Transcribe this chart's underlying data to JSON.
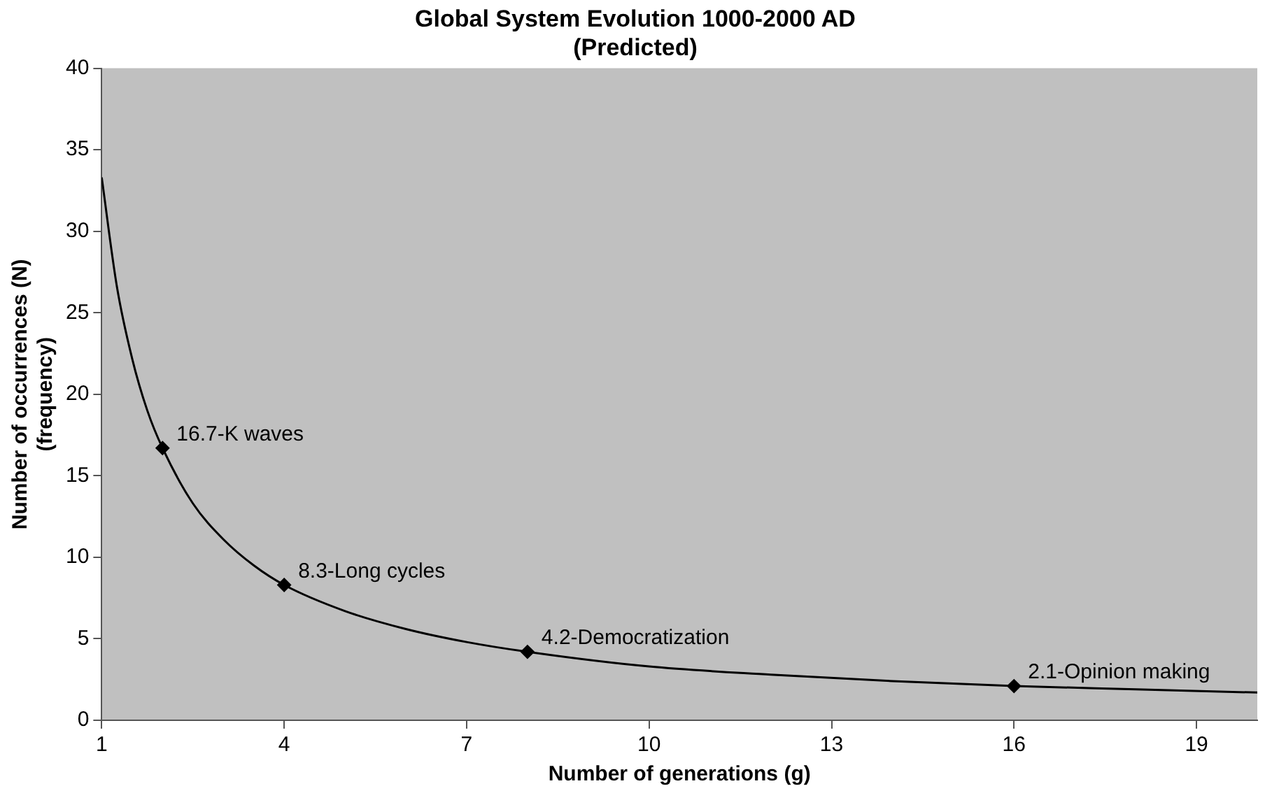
{
  "chart_data": {
    "type": "line",
    "title": "Global System Evolution 1000-2000 AD\n(Predicted)",
    "xlabel": "Number of generations (g)",
    "ylabel": "Number of occurrences (N)\n(frequency)",
    "xlim": [
      1,
      20
    ],
    "xticks": [
      1,
      4,
      7,
      10,
      13,
      16,
      19
    ],
    "ylim": [
      0,
      40
    ],
    "yticks": [
      0,
      5,
      10,
      15,
      20,
      25,
      30,
      35,
      40
    ],
    "grid": false,
    "legend": false,
    "series": [
      {
        "color": "#000000",
        "marker": "none",
        "line_style": "solid",
        "x": [
          1,
          1.25,
          1.5,
          1.75,
          2,
          2.5,
          3,
          3.5,
          4,
          5,
          6,
          7,
          8,
          10,
          12,
          14,
          16,
          18,
          20
        ],
        "values": [
          33.3,
          26.6,
          22.2,
          19.0,
          16.7,
          13.3,
          11.1,
          9.5,
          8.3,
          6.7,
          5.6,
          4.8,
          4.2,
          3.3,
          2.8,
          2.4,
          2.1,
          1.9,
          1.7
        ]
      },
      {
        "type": "scatter",
        "color": "#000000",
        "marker": "diamond",
        "x": [
          2,
          4,
          8,
          16
        ],
        "values": [
          16.7,
          8.3,
          4.2,
          2.1
        ],
        "value_labels": [
          "16.7-K waves",
          "8.3-Long cycles",
          "4.2-Democratization",
          "2.1-Opinion making"
        ]
      }
    ]
  }
}
